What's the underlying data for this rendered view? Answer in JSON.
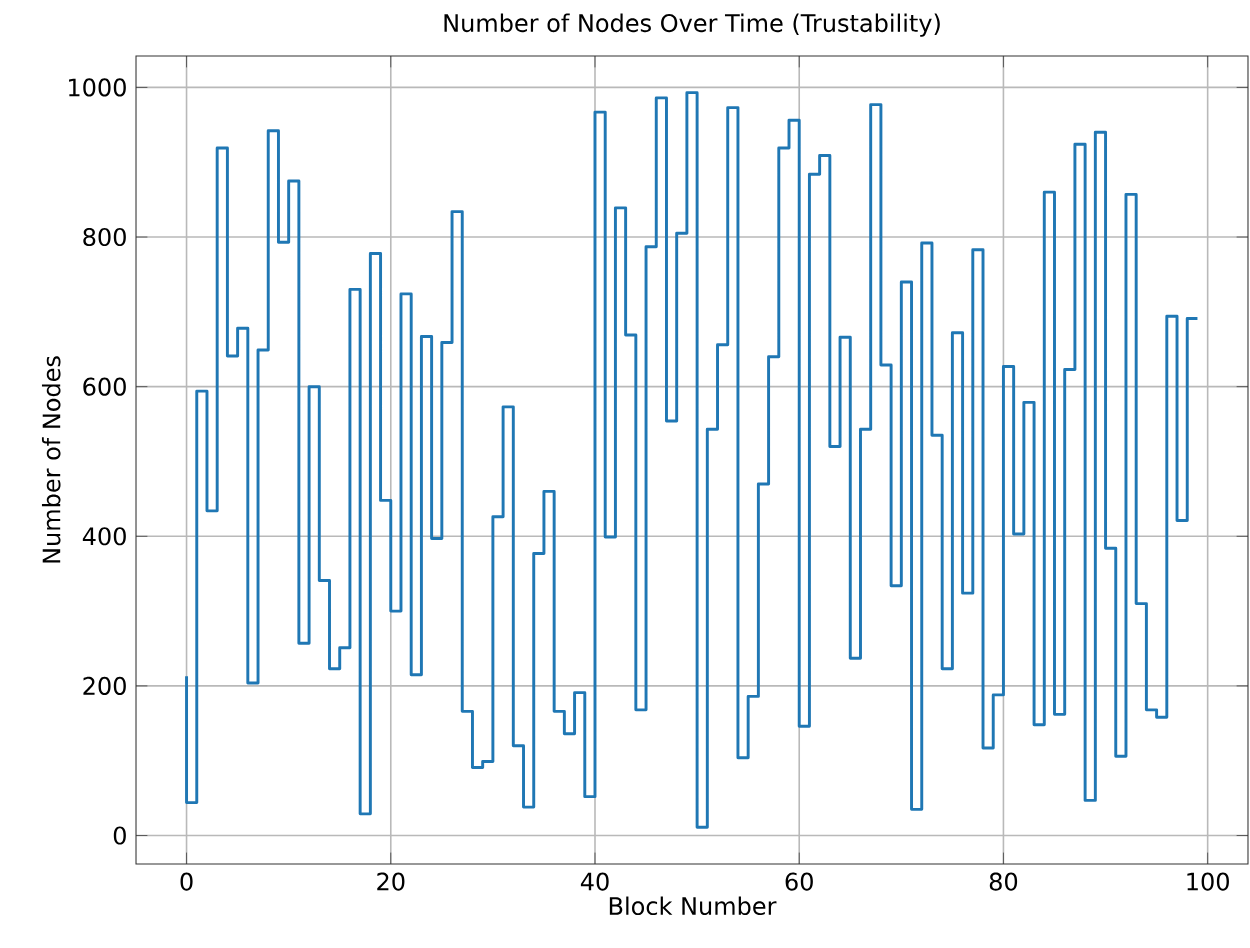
{
  "chart_data": {
    "type": "step",
    "title": "Number of Nodes Over Time (Trustability)",
    "xlabel": "Block Number",
    "ylabel": "Number of Nodes",
    "x": [
      0,
      1,
      2,
      3,
      4,
      5,
      6,
      7,
      8,
      9,
      10,
      11,
      12,
      13,
      14,
      15,
      16,
      17,
      18,
      19,
      20,
      21,
      22,
      23,
      24,
      25,
      26,
      27,
      28,
      29,
      30,
      31,
      32,
      33,
      34,
      35,
      36,
      37,
      38,
      39,
      40,
      41,
      42,
      43,
      44,
      45,
      46,
      47,
      48,
      49,
      50,
      51,
      52,
      53,
      54,
      55,
      56,
      57,
      58,
      59,
      60,
      61,
      62,
      63,
      64,
      65,
      66,
      67,
      68,
      69,
      70,
      71,
      72,
      73,
      74,
      75,
      76,
      77,
      78,
      79,
      80,
      81,
      82,
      83,
      84,
      85,
      86,
      87,
      88,
      89,
      90,
      91,
      92,
      93,
      94,
      95,
      96,
      97,
      98,
      99
    ],
    "series": [
      {
        "color": "#1f77b4",
        "values": [
          213,
          44,
          594,
          434,
          919,
          641,
          678,
          204,
          649,
          942,
          793,
          875,
          257,
          600,
          341,
          223,
          251,
          730,
          29,
          778,
          448,
          300,
          724,
          215,
          667,
          397,
          659,
          834,
          166,
          91,
          99,
          426,
          573,
          120,
          38,
          377,
          460,
          166,
          136,
          191,
          52,
          967,
          399,
          839,
          669,
          168,
          787,
          986,
          554,
          805,
          993,
          11,
          543,
          656,
          973,
          104,
          186,
          470,
          640,
          919,
          956,
          146,
          884,
          909,
          520,
          666,
          237,
          543,
          977,
          629,
          334,
          740,
          35,
          792,
          535,
          223,
          672,
          324,
          783,
          117,
          188,
          627,
          403,
          579,
          148,
          860,
          162,
          623,
          924,
          47,
          940,
          384,
          106,
          857,
          310,
          168,
          158,
          694,
          421,
          691
        ]
      }
    ],
    "xlim": [
      -4.95,
      103.95
    ],
    "ylim": [
      -38,
      1042
    ],
    "xticks": [
      0,
      20,
      40,
      60,
      80,
      100
    ],
    "yticks": [
      0,
      200,
      400,
      600,
      800,
      1000
    ],
    "grid": true,
    "marker": "none",
    "line_style": "solid"
  }
}
